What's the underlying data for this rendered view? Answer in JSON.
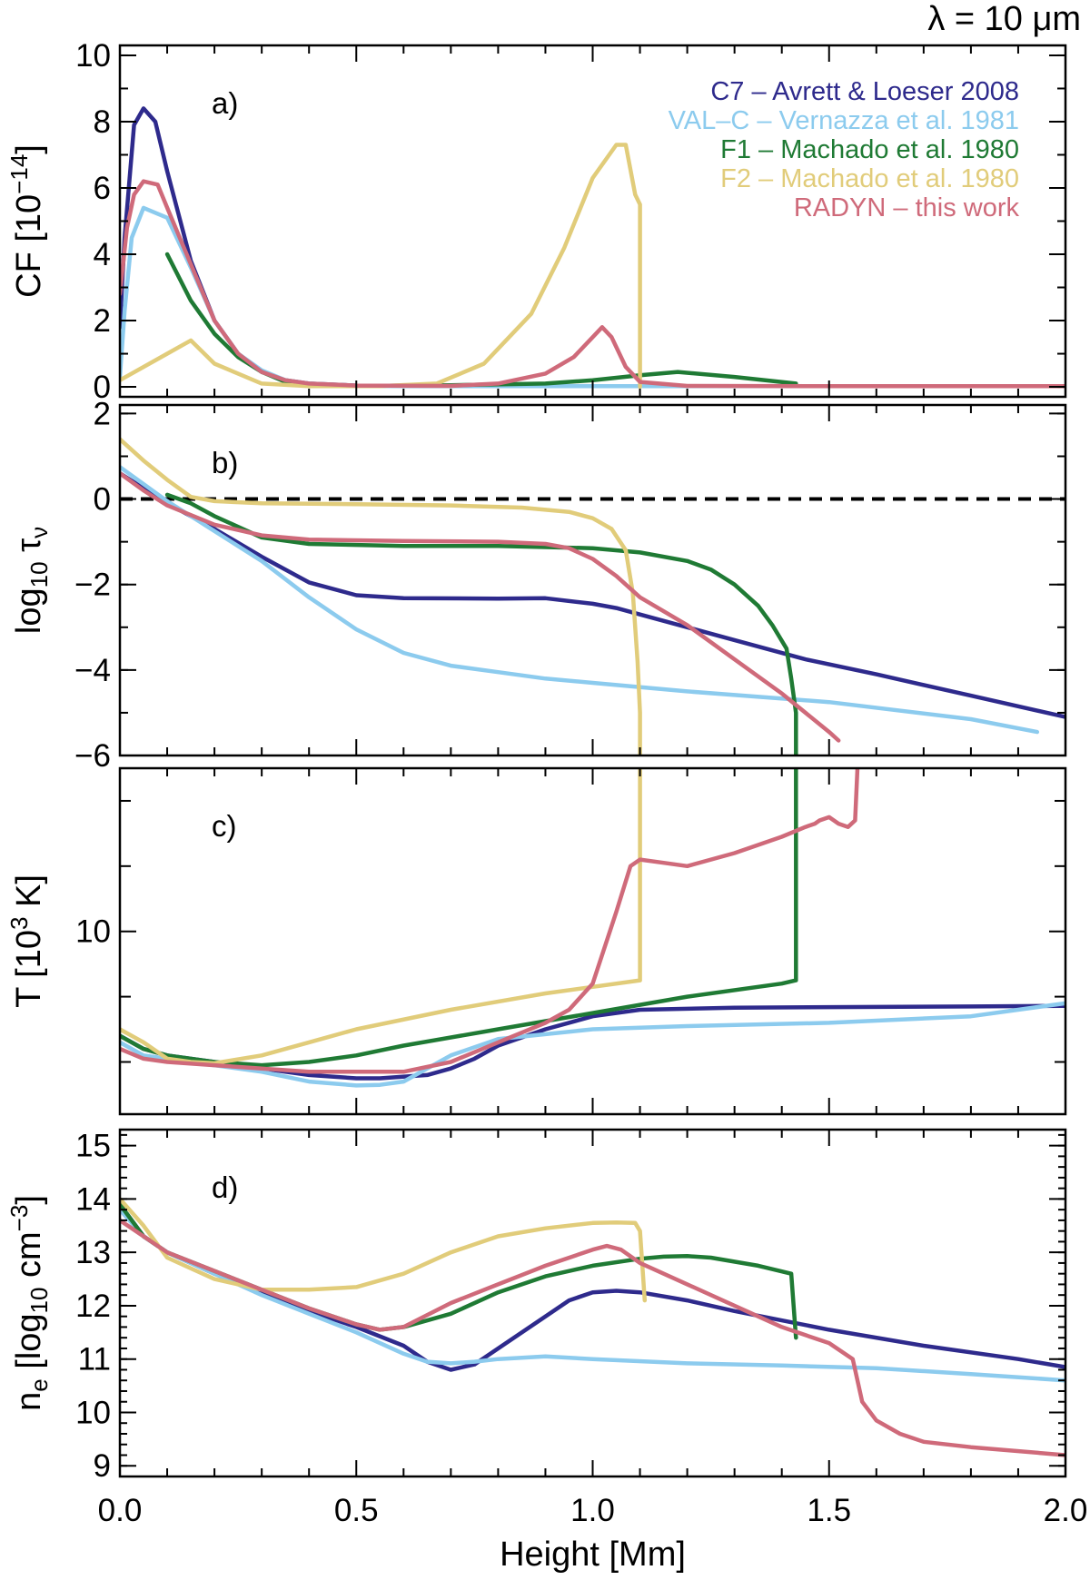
{
  "header": {
    "wavelength_label": "λ = 10 μm"
  },
  "colors": {
    "C7": "#2e2a8c",
    "VALC": "#8ccbee",
    "F1": "#1f7a34",
    "F2": "#e1cc7a",
    "RADYN": "#cf6a7a"
  },
  "chart_data": {
    "type": "line",
    "xlabel": "Height [Mm]",
    "xlim": [
      0,
      2.0
    ],
    "xticks": [
      "0.0",
      "0.5",
      "1.0",
      "1.5",
      "2.0"
    ],
    "xtick_values": [
      0,
      0.5,
      1.0,
      1.5,
      2.0
    ],
    "legend": [
      {
        "label": "C7 – Avrett & Loeser 2008",
        "key": "C7"
      },
      {
        "label": "VAL–C – Vernazza et al. 1981",
        "key": "VALC"
      },
      {
        "label": "F1 – Machado et al. 1980",
        "key": "F1"
      },
      {
        "label": "F2 – Machado et al. 1980",
        "key": "F2"
      },
      {
        "label": "RADYN – this work",
        "key": "RADYN"
      }
    ],
    "panels": [
      {
        "id": "a",
        "panel_label": "a)",
        "ylabel_main": "CF [10",
        "ylabel_sup": "−14",
        "ylabel_end": "]",
        "ylim": [
          -0.3,
          10.3
        ],
        "yticks": [
          "0",
          "2",
          "4",
          "6",
          "8",
          "10"
        ],
        "ytick_values": [
          0,
          2,
          4,
          6,
          8,
          10
        ],
        "series": [
          {
            "key": "C7",
            "x": [
              0.0,
              0.01,
              0.03,
              0.05,
              0.075,
              0.1,
              0.15,
              0.2,
              0.25,
              0.3,
              0.35,
              0.4,
              0.5,
              0.7,
              1.0,
              1.5,
              2.0
            ],
            "y": [
              1.8,
              4.5,
              7.9,
              8.4,
              8.0,
              6.5,
              3.8,
              2.0,
              1.0,
              0.45,
              0.2,
              0.1,
              0.04,
              0.02,
              0.02,
              0.02,
              0.02
            ]
          },
          {
            "key": "VALC",
            "x": [
              0.0,
              0.01,
              0.025,
              0.05,
              0.1,
              0.15,
              0.2,
              0.25,
              0.3,
              0.35,
              0.4,
              0.5,
              0.7,
              1.0,
              1.5,
              2.0
            ],
            "y": [
              0.3,
              2.3,
              4.5,
              5.4,
              5.1,
              3.6,
              2.0,
              1.0,
              0.5,
              0.2,
              0.1,
              0.03,
              0.02,
              0.02,
              0.02,
              0.02
            ]
          },
          {
            "key": "F1",
            "x": [
              0.1,
              0.15,
              0.2,
              0.25,
              0.3,
              0.35,
              0.4,
              0.5,
              0.7,
              0.9,
              1.0,
              1.1,
              1.18,
              1.3,
              1.43
            ],
            "y": [
              4.0,
              2.6,
              1.6,
              0.9,
              0.45,
              0.15,
              0.06,
              0.03,
              0.05,
              0.1,
              0.2,
              0.35,
              0.45,
              0.3,
              0.1
            ]
          },
          {
            "key": "F2",
            "x": [
              0.0,
              0.1,
              0.15,
              0.2,
              0.3,
              0.4,
              0.55,
              0.67,
              0.77,
              0.87,
              0.94,
              1.0,
              1.05,
              1.07,
              1.09,
              1.1,
              1.1
            ],
            "y": [
              0.2,
              1.0,
              1.4,
              0.7,
              0.1,
              0.02,
              0.02,
              0.1,
              0.7,
              2.2,
              4.2,
              6.3,
              7.3,
              7.3,
              5.8,
              5.5,
              0.0
            ]
          },
          {
            "key": "RADYN",
            "x": [
              0.0,
              0.015,
              0.03,
              0.05,
              0.08,
              0.1,
              0.15,
              0.2,
              0.25,
              0.3,
              0.35,
              0.4,
              0.5,
              0.7,
              0.8,
              0.9,
              0.96,
              1.0,
              1.02,
              1.04,
              1.07,
              1.1,
              1.2,
              1.5,
              2.0
            ],
            "y": [
              2.8,
              4.8,
              5.8,
              6.2,
              6.1,
              5.4,
              3.7,
              2.0,
              1.0,
              0.45,
              0.2,
              0.1,
              0.04,
              0.03,
              0.1,
              0.4,
              0.9,
              1.5,
              1.8,
              1.5,
              0.6,
              0.15,
              0.03,
              0.02,
              0.02
            ]
          }
        ]
      },
      {
        "id": "b",
        "panel_label": "b)",
        "ylabel_main": "log",
        "ylabel_sub": "10",
        "ylabel_end": " τ",
        "ylabel_sub2": "ν",
        "ylim": [
          -6.0,
          2.2
        ],
        "yticks": [
          "2",
          "0",
          "−2",
          "−4",
          "−6"
        ],
        "ytick_values": [
          2,
          0,
          -2,
          -4,
          -6
        ],
        "reference_line": {
          "y": 0,
          "style": "dashed"
        },
        "series": [
          {
            "key": "C7",
            "x": [
              0.0,
              0.05,
              0.1,
              0.2,
              0.3,
              0.4,
              0.5,
              0.6,
              0.8,
              0.9,
              1.0,
              1.05,
              1.1,
              1.2,
              1.3,
              1.45,
              1.6,
              1.8,
              2.0
            ],
            "y": [
              0.6,
              0.25,
              -0.1,
              -0.7,
              -1.35,
              -1.95,
              -2.25,
              -2.32,
              -2.33,
              -2.32,
              -2.45,
              -2.55,
              -2.7,
              -3.0,
              -3.3,
              -3.75,
              -4.1,
              -4.6,
              -5.1
            ]
          },
          {
            "key": "VALC",
            "x": [
              0.0,
              0.05,
              0.1,
              0.2,
              0.3,
              0.4,
              0.5,
              0.6,
              0.7,
              0.8,
              0.9,
              1.0,
              1.2,
              1.5,
              1.8,
              1.94
            ],
            "y": [
              0.75,
              0.35,
              -0.05,
              -0.75,
              -1.45,
              -2.3,
              -3.05,
              -3.6,
              -3.9,
              -4.05,
              -4.2,
              -4.3,
              -4.5,
              -4.75,
              -5.15,
              -5.45
            ]
          },
          {
            "key": "F1",
            "x": [
              0.1,
              0.15,
              0.2,
              0.3,
              0.4,
              0.6,
              0.8,
              1.0,
              1.1,
              1.2,
              1.25,
              1.3,
              1.35,
              1.38,
              1.41,
              1.42,
              1.43,
              1.43
            ],
            "y": [
              0.1,
              -0.1,
              -0.4,
              -0.9,
              -1.05,
              -1.1,
              -1.1,
              -1.15,
              -1.25,
              -1.45,
              -1.65,
              -2.0,
              -2.5,
              -2.95,
              -3.5,
              -4.2,
              -5.0,
              -6.0
            ]
          },
          {
            "key": "F2",
            "x": [
              0.0,
              0.05,
              0.1,
              0.15,
              0.2,
              0.3,
              0.5,
              0.7,
              0.85,
              0.95,
              1.0,
              1.04,
              1.07,
              1.085,
              1.095,
              1.1,
              1.1
            ],
            "y": [
              1.4,
              0.9,
              0.45,
              0.05,
              -0.05,
              -0.1,
              -0.12,
              -0.15,
              -0.2,
              -0.3,
              -0.45,
              -0.7,
              -1.2,
              -2.2,
              -3.8,
              -5.0,
              -6.0
            ]
          },
          {
            "key": "RADYN",
            "x": [
              0.0,
              0.05,
              0.1,
              0.2,
              0.3,
              0.4,
              0.6,
              0.8,
              0.9,
              0.95,
              1.0,
              1.05,
              1.1,
              1.2,
              1.3,
              1.4,
              1.5,
              1.52
            ],
            "y": [
              0.6,
              0.2,
              -0.15,
              -0.6,
              -0.85,
              -0.95,
              -0.98,
              -1.0,
              -1.05,
              -1.15,
              -1.4,
              -1.8,
              -2.3,
              -2.95,
              -3.75,
              -4.55,
              -5.45,
              -5.65
            ]
          }
        ]
      },
      {
        "id": "c",
        "panel_label": "c)",
        "ylabel_main": "T [10",
        "ylabel_sup": "3",
        "ylabel_end": " K]",
        "ylim": [
          3.72,
          4.25
        ],
        "yticks": [
          "10"
        ],
        "ytick_values": [
          4.0
        ],
        "series": [
          {
            "key": "C7",
            "x": [
              0.0,
              0.05,
              0.1,
              0.2,
              0.3,
              0.4,
              0.5,
              0.55,
              0.65,
              0.7,
              0.75,
              0.8,
              0.9,
              1.0,
              1.1,
              1.3,
              1.5,
              1.8,
              2.0
            ],
            "y": [
              3.84,
              3.82,
              3.81,
              3.8,
              3.79,
              3.78,
              3.775,
              3.775,
              3.78,
              3.79,
              3.805,
              3.825,
              3.85,
              3.87,
              3.88,
              3.883,
              3.884,
              3.885,
              3.886
            ]
          },
          {
            "key": "VALC",
            "x": [
              0.0,
              0.05,
              0.1,
              0.2,
              0.3,
              0.4,
              0.5,
              0.55,
              0.6,
              0.7,
              0.8,
              1.0,
              1.2,
              1.5,
              1.8,
              2.0
            ],
            "y": [
              3.83,
              3.81,
              3.805,
              3.795,
              3.785,
              3.77,
              3.764,
              3.765,
              3.77,
              3.81,
              3.835,
              3.85,
              3.855,
              3.86,
              3.87,
              3.89
            ]
          },
          {
            "key": "F1",
            "x": [
              0.0,
              0.05,
              0.1,
              0.2,
              0.3,
              0.4,
              0.5,
              0.6,
              0.8,
              1.0,
              1.2,
              1.4,
              1.43,
              1.43
            ],
            "y": [
              3.84,
              3.82,
              3.81,
              3.8,
              3.795,
              3.8,
              3.81,
              3.825,
              3.85,
              3.875,
              3.9,
              3.92,
              3.925,
              4.25
            ]
          },
          {
            "key": "F2",
            "x": [
              0.0,
              0.05,
              0.1,
              0.15,
              0.2,
              0.3,
              0.4,
              0.5,
              0.7,
              0.9,
              1.0,
              1.1,
              1.1
            ],
            "y": [
              3.85,
              3.83,
              3.805,
              3.8,
              3.798,
              3.81,
              3.83,
              3.85,
              3.88,
              3.905,
              3.915,
              3.925,
              4.25
            ]
          },
          {
            "key": "RADYN",
            "x": [
              0.0,
              0.05,
              0.1,
              0.2,
              0.3,
              0.4,
              0.5,
              0.6,
              0.7,
              0.8,
              0.9,
              0.95,
              1.0,
              1.05,
              1.08,
              1.1,
              1.15,
              1.2,
              1.3,
              1.4,
              1.45,
              1.47,
              1.48,
              1.5,
              1.52,
              1.54,
              1.555,
              1.56
            ],
            "y": [
              3.82,
              3.805,
              3.8,
              3.795,
              3.79,
              3.785,
              3.785,
              3.785,
              3.8,
              3.83,
              3.86,
              3.88,
              3.92,
              4.03,
              4.1,
              4.11,
              4.105,
              4.1,
              4.12,
              4.145,
              4.16,
              4.165,
              4.17,
              4.175,
              4.165,
              4.16,
              4.17,
              4.25
            ]
          }
        ]
      },
      {
        "id": "d",
        "panel_label": "d)",
        "ylabel_main": "n",
        "ylabel_sub": "e",
        "ylabel_end": " [log",
        "ylabel_sub2": "10",
        "ylabel_end2": " cm",
        "ylabel_sup": "−3",
        "ylabel_end3": "]",
        "ylim": [
          8.8,
          15.3
        ],
        "yticks": [
          "15",
          "14",
          "13",
          "12",
          "11",
          "10",
          "9"
        ],
        "ytick_values": [
          15,
          14,
          13,
          12,
          11,
          10,
          9
        ],
        "series": [
          {
            "key": "C7",
            "x": [
              0.0,
              0.05,
              0.1,
              0.2,
              0.3,
              0.4,
              0.5,
              0.6,
              0.65,
              0.7,
              0.75,
              0.8,
              0.9,
              0.95,
              1.0,
              1.05,
              1.1,
              1.2,
              1.3,
              1.5,
              1.7,
              1.9,
              2.0
            ],
            "y": [
              13.9,
              13.3,
              13.0,
              12.6,
              12.25,
              11.9,
              11.6,
              11.25,
              10.95,
              10.8,
              10.9,
              11.2,
              11.8,
              12.1,
              12.25,
              12.28,
              12.25,
              12.1,
              11.9,
              11.55,
              11.25,
              11.0,
              10.85
            ]
          },
          {
            "key": "VALC",
            "x": [
              0.0,
              0.05,
              0.1,
              0.2,
              0.3,
              0.4,
              0.5,
              0.6,
              0.65,
              0.7,
              0.75,
              0.8,
              0.9,
              1.0,
              1.2,
              1.4,
              1.6,
              1.8,
              2.0
            ],
            "y": [
              13.8,
              13.3,
              13.0,
              12.6,
              12.2,
              11.85,
              11.5,
              11.1,
              10.95,
              10.92,
              10.95,
              11.0,
              11.05,
              11.0,
              10.92,
              10.88,
              10.83,
              10.72,
              10.6
            ]
          },
          {
            "key": "F1",
            "x": [
              0.0,
              0.05,
              0.1,
              0.2,
              0.3,
              0.4,
              0.5,
              0.55,
              0.6,
              0.7,
              0.8,
              0.9,
              1.0,
              1.1,
              1.15,
              1.2,
              1.25,
              1.35,
              1.42,
              1.43
            ],
            "y": [
              13.9,
              13.3,
              13.0,
              12.65,
              12.3,
              11.95,
              11.65,
              11.55,
              11.6,
              11.85,
              12.25,
              12.55,
              12.75,
              12.88,
              12.92,
              12.93,
              12.9,
              12.75,
              12.6,
              11.4
            ]
          },
          {
            "key": "F2",
            "x": [
              0.0,
              0.05,
              0.1,
              0.2,
              0.3,
              0.4,
              0.5,
              0.6,
              0.7,
              0.8,
              0.9,
              1.0,
              1.05,
              1.09,
              1.1,
              1.11
            ],
            "y": [
              14.0,
              13.5,
              12.9,
              12.5,
              12.3,
              12.3,
              12.35,
              12.6,
              13.0,
              13.3,
              13.45,
              13.55,
              13.56,
              13.55,
              13.4,
              12.1
            ]
          },
          {
            "key": "RADYN",
            "x": [
              0.0,
              0.05,
              0.1,
              0.2,
              0.3,
              0.4,
              0.5,
              0.55,
              0.6,
              0.7,
              0.8,
              0.9,
              1.0,
              1.03,
              1.06,
              1.1,
              1.2,
              1.3,
              1.4,
              1.45,
              1.5,
              1.55,
              1.57,
              1.6,
              1.65,
              1.7,
              1.8,
              2.0
            ],
            "y": [
              13.6,
              13.3,
              13.0,
              12.65,
              12.3,
              11.95,
              11.65,
              11.55,
              11.6,
              12.05,
              12.4,
              12.75,
              13.05,
              13.12,
              13.05,
              12.8,
              12.4,
              12.0,
              11.6,
              11.45,
              11.3,
              11.0,
              10.2,
              9.85,
              9.6,
              9.45,
              9.35,
              9.2
            ]
          }
        ]
      }
    ]
  }
}
